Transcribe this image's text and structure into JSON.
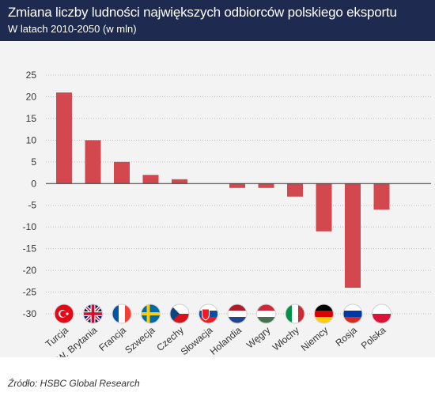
{
  "header": {
    "title": "Zmiana liczby ludności największych odbiorców polskiego eksportu",
    "subtitle": "W latach 2010-2050 (w mln)"
  },
  "source": "Źródło: HSBC Global Research",
  "colors": {
    "header_bg": "#1e2a4f",
    "bar": "#d2484e",
    "background": "#f3f3f3",
    "grid": "#bfbfbf"
  },
  "chart_data": {
    "type": "bar",
    "categories": [
      "Turcja",
      "W. Brytania",
      "Francja",
      "Szwecja",
      "Czechy",
      "Słowacja",
      "Holandia",
      "Węgry",
      "Włochy",
      "Niemcy",
      "Rosja",
      "Polska"
    ],
    "values": [
      21,
      10,
      5,
      2,
      1,
      0,
      -1,
      -1,
      -3,
      -11,
      -24,
      -6
    ],
    "ylim": [
      -30,
      25
    ],
    "yticks": [
      25,
      20,
      15,
      10,
      5,
      0,
      -5,
      -10,
      -15,
      -20,
      -25,
      -30
    ],
    "grid": true,
    "flag_icons": [
      "turkey-flag-icon",
      "uk-flag-icon",
      "france-flag-icon",
      "sweden-flag-icon",
      "czech-flag-icon",
      "slovakia-flag-icon",
      "netherlands-flag-icon",
      "hungary-flag-icon",
      "italy-flag-icon",
      "germany-flag-icon",
      "russia-flag-icon",
      "poland-flag-icon"
    ]
  }
}
